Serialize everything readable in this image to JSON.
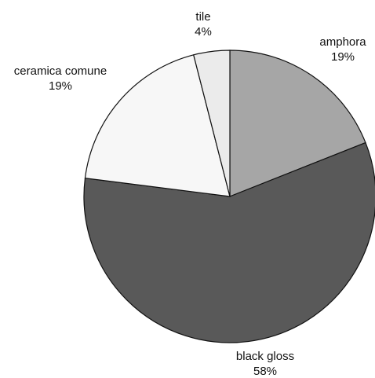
{
  "chart_data": {
    "type": "pie",
    "title": "",
    "slices": [
      {
        "label": "amphora",
        "value": 19,
        "pct_label": "19%",
        "color": "#a6a6a6"
      },
      {
        "label": "black gloss",
        "value": 58,
        "pct_label": "58%",
        "color": "#595959"
      },
      {
        "label": "ceramica comune",
        "value": 19,
        "pct_label": "19%",
        "color": "#f7f7f7"
      },
      {
        "label": "tile",
        "value": 4,
        "pct_label": "4%",
        "color": "#ebebeb"
      }
    ],
    "start": "12 o'clock",
    "direction": "clockwise",
    "legend": "none",
    "label_style": "outside labels with percentage"
  }
}
